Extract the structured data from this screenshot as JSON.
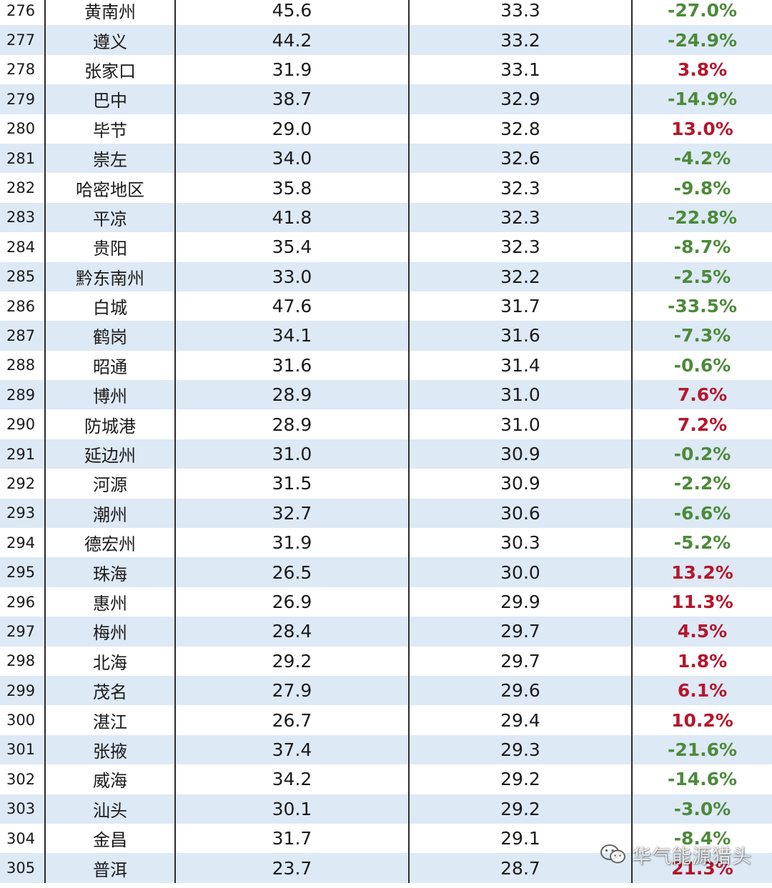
{
  "rows": [
    {
      "rank": "276",
      "city": "黄南州",
      "v1": "45.6",
      "v2": "33.3",
      "change": "-27.0%"
    },
    {
      "rank": "277",
      "city": "遵义",
      "v1": "44.2",
      "v2": "33.2",
      "change": "-24.9%"
    },
    {
      "rank": "278",
      "city": "张家口",
      "v1": "31.9",
      "v2": "33.1",
      "change": "3.8%"
    },
    {
      "rank": "279",
      "city": "巴中",
      "v1": "38.7",
      "v2": "32.9",
      "change": "-14.9%"
    },
    {
      "rank": "280",
      "city": "毕节",
      "v1": "29.0",
      "v2": "32.8",
      "change": "13.0%"
    },
    {
      "rank": "281",
      "city": "崇左",
      "v1": "34.0",
      "v2": "32.6",
      "change": "-4.2%"
    },
    {
      "rank": "282",
      "city": "哈密地区",
      "v1": "35.8",
      "v2": "32.3",
      "change": "-9.8%"
    },
    {
      "rank": "283",
      "city": "平凉",
      "v1": "41.8",
      "v2": "32.3",
      "change": "-22.8%"
    },
    {
      "rank": "284",
      "city": "贵阳",
      "v1": "35.4",
      "v2": "32.3",
      "change": "-8.7%"
    },
    {
      "rank": "285",
      "city": "黔东南州",
      "v1": "33.0",
      "v2": "32.2",
      "change": "-2.5%"
    },
    {
      "rank": "286",
      "city": "白城",
      "v1": "47.6",
      "v2": "31.7",
      "change": "-33.5%"
    },
    {
      "rank": "287",
      "city": "鹤岗",
      "v1": "34.1",
      "v2": "31.6",
      "change": "-7.3%"
    },
    {
      "rank": "288",
      "city": "昭通",
      "v1": "31.6",
      "v2": "31.4",
      "change": "-0.6%"
    },
    {
      "rank": "289",
      "city": "博州",
      "v1": "28.9",
      "v2": "31.0",
      "change": "7.6%"
    },
    {
      "rank": "290",
      "city": "防城港",
      "v1": "28.9",
      "v2": "31.0",
      "change": "7.2%"
    },
    {
      "rank": "291",
      "city": "延边州",
      "v1": "31.0",
      "v2": "30.9",
      "change": "-0.2%"
    },
    {
      "rank": "292",
      "city": "河源",
      "v1": "31.5",
      "v2": "30.9",
      "change": "-2.2%"
    },
    {
      "rank": "293",
      "city": "潮州",
      "v1": "32.7",
      "v2": "30.6",
      "change": "-6.6%"
    },
    {
      "rank": "294",
      "city": "德宏州",
      "v1": "31.9",
      "v2": "30.3",
      "change": "-5.2%"
    },
    {
      "rank": "295",
      "city": "珠海",
      "v1": "26.5",
      "v2": "30.0",
      "change": "13.2%"
    },
    {
      "rank": "296",
      "city": "惠州",
      "v1": "26.9",
      "v2": "29.9",
      "change": "11.3%"
    },
    {
      "rank": "297",
      "city": "梅州",
      "v1": "28.4",
      "v2": "29.7",
      "change": "4.5%"
    },
    {
      "rank": "298",
      "city": "北海",
      "v1": "29.2",
      "v2": "29.7",
      "change": "1.8%"
    },
    {
      "rank": "299",
      "city": "茂名",
      "v1": "27.9",
      "v2": "29.6",
      "change": "6.1%"
    },
    {
      "rank": "300",
      "city": "湛江",
      "v1": "26.7",
      "v2": "29.4",
      "change": "10.2%"
    },
    {
      "rank": "301",
      "city": "张掖",
      "v1": "37.4",
      "v2": "29.3",
      "change": "-21.6%"
    },
    {
      "rank": "302",
      "city": "威海",
      "v1": "34.2",
      "v2": "29.2",
      "change": "-14.6%"
    },
    {
      "rank": "303",
      "city": "汕头",
      "v1": "30.1",
      "v2": "29.2",
      "change": "-3.0%"
    },
    {
      "rank": "304",
      "city": "金昌",
      "v1": "31.7",
      "v2": "29.1",
      "change": "-8.4%"
    },
    {
      "rank": "305",
      "city": "普洱",
      "v1": "23.7",
      "v2": "28.7",
      "change": "21.3%"
    }
  ],
  "colors": {
    "positive": "#b5162b",
    "negative": "#4d8a3a",
    "stripe": "#dde9f5"
  },
  "watermark": {
    "icon": "wechat-icon",
    "text": "华气能源猎头"
  }
}
